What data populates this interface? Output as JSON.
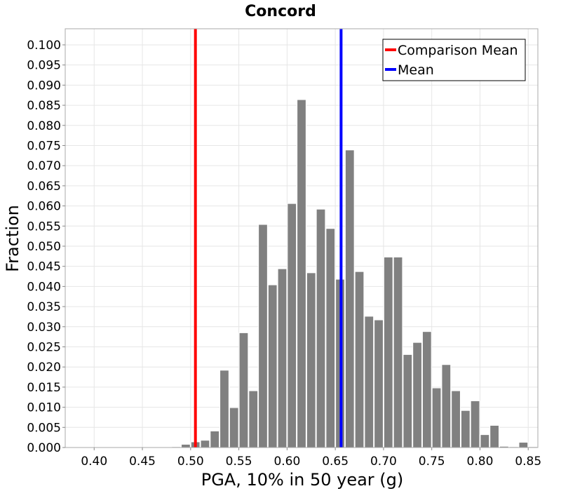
{
  "chart_data": {
    "type": "bar",
    "title": "Concord",
    "xlabel": "PGA, 10% in 50 year (g)",
    "ylabel": "Fraction",
    "xlim": [
      0.37,
      0.86
    ],
    "ylim": [
      0,
      0.104
    ],
    "xticks": [
      "0.40",
      "0.45",
      "0.50",
      "0.55",
      "0.60",
      "0.65",
      "0.70",
      "0.75",
      "0.80",
      "0.85"
    ],
    "yticks": [
      "0.000",
      "0.005",
      "0.010",
      "0.015",
      "0.020",
      "0.025",
      "0.030",
      "0.035",
      "0.040",
      "0.045",
      "0.050",
      "0.055",
      "0.060",
      "0.065",
      "0.070",
      "0.075",
      "0.080",
      "0.085",
      "0.090",
      "0.095",
      "0.100"
    ],
    "bin_width": 0.01,
    "bins": [
      {
        "x": 0.485,
        "y": 0.0002
      },
      {
        "x": 0.495,
        "y": 0.0008
      },
      {
        "x": 0.505,
        "y": 0.0014
      },
      {
        "x": 0.515,
        "y": 0.0018
      },
      {
        "x": 0.525,
        "y": 0.0041
      },
      {
        "x": 0.535,
        "y": 0.0192
      },
      {
        "x": 0.545,
        "y": 0.0099
      },
      {
        "x": 0.555,
        "y": 0.0285
      },
      {
        "x": 0.565,
        "y": 0.0141
      },
      {
        "x": 0.575,
        "y": 0.0554
      },
      {
        "x": 0.585,
        "y": 0.0404
      },
      {
        "x": 0.595,
        "y": 0.0444
      },
      {
        "x": 0.605,
        "y": 0.0606
      },
      {
        "x": 0.615,
        "y": 0.0864
      },
      {
        "x": 0.625,
        "y": 0.0434
      },
      {
        "x": 0.635,
        "y": 0.0592
      },
      {
        "x": 0.645,
        "y": 0.0544
      },
      {
        "x": 0.655,
        "y": 0.0418
      },
      {
        "x": 0.665,
        "y": 0.0739
      },
      {
        "x": 0.675,
        "y": 0.0437
      },
      {
        "x": 0.685,
        "y": 0.0326
      },
      {
        "x": 0.695,
        "y": 0.0317
      },
      {
        "x": 0.705,
        "y": 0.0473
      },
      {
        "x": 0.715,
        "y": 0.0473
      },
      {
        "x": 0.725,
        "y": 0.0231
      },
      {
        "x": 0.735,
        "y": 0.0261
      },
      {
        "x": 0.745,
        "y": 0.0288
      },
      {
        "x": 0.755,
        "y": 0.0148
      },
      {
        "x": 0.765,
        "y": 0.0206
      },
      {
        "x": 0.775,
        "y": 0.0141
      },
      {
        "x": 0.785,
        "y": 0.0092
      },
      {
        "x": 0.795,
        "y": 0.0116
      },
      {
        "x": 0.805,
        "y": 0.0032
      },
      {
        "x": 0.815,
        "y": 0.0055
      },
      {
        "x": 0.825,
        "y": 0.0003
      },
      {
        "x": 0.835,
        "y": 0.0002
      },
      {
        "x": 0.845,
        "y": 0.0013
      },
      {
        "x": 0.855,
        "y": 0.0002
      }
    ],
    "reference_lines": [
      {
        "name": "Comparison Mean",
        "x": 0.505,
        "color": "#ff0000"
      },
      {
        "name": "Mean",
        "x": 0.656,
        "color": "#0000ff"
      }
    ],
    "legend": {
      "position": "top-right",
      "entries": [
        "Comparison Mean",
        "Mean"
      ]
    },
    "grid": true,
    "bar_color": "#808080"
  }
}
